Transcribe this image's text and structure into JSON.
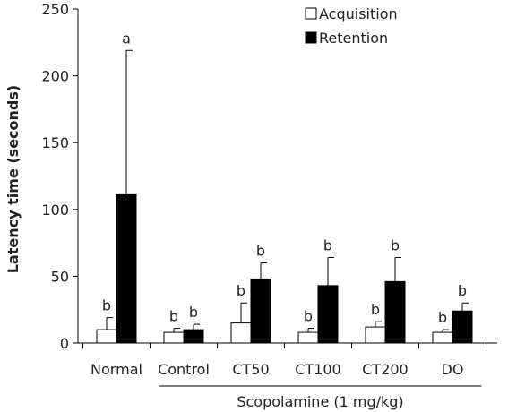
{
  "chart_data": {
    "type": "bar",
    "ylabel": "Latency time (seconds)",
    "xlabel": "",
    "ylim": [
      0,
      250
    ],
    "yticks": [
      0,
      50,
      100,
      150,
      200,
      250
    ],
    "categories": [
      "Normal",
      "Control",
      "CT50",
      "CT100",
      "CT200",
      "DO"
    ],
    "group_label": "Scopolamine (1 mg/kg)",
    "group_categories": [
      "Control",
      "CT50",
      "CT100",
      "CT200",
      "DO"
    ],
    "grid": false,
    "legend_position": "top-right",
    "series": [
      {
        "name": "Acquisition",
        "color": "#ffffff",
        "values": [
          10,
          8,
          15,
          8,
          12,
          8
        ],
        "errors": [
          9,
          3,
          15,
          3,
          4,
          2
        ],
        "labels": [
          "b",
          "b",
          "b",
          "b",
          "b",
          "b"
        ]
      },
      {
        "name": "Retention",
        "color": "#000000",
        "values": [
          111,
          10,
          48,
          43,
          46,
          24
        ],
        "errors": [
          108,
          4,
          12,
          21,
          18,
          6
        ],
        "labels": [
          "a",
          "b",
          "b",
          "b",
          "b",
          "b"
        ]
      }
    ]
  }
}
